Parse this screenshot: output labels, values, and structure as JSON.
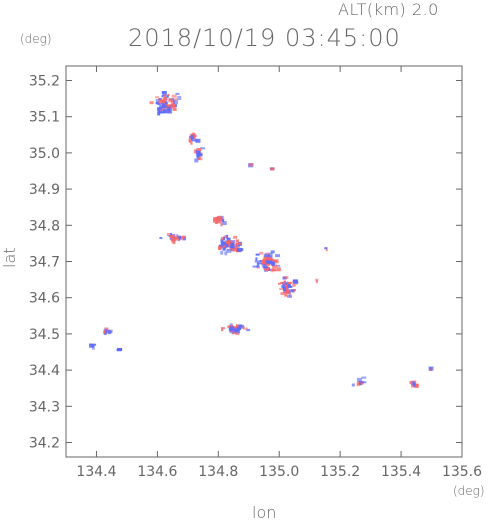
{
  "header": {
    "altitude_label": "ALT(km)  2.0",
    "timestamp": "2018/10/19 03:45:00"
  },
  "chart_data": {
    "type": "scatter",
    "xlabel": "lon",
    "ylabel": "lat",
    "xunit": "(deg)",
    "yunit": "(deg)",
    "xlim": [
      134.3,
      135.6
    ],
    "ylim": [
      34.16,
      35.24
    ],
    "xticks": [
      134.4,
      134.6,
      134.8,
      135.0,
      135.2,
      135.4,
      135.6
    ],
    "xtick_labels": [
      "134.4",
      "134.6",
      "134.8",
      "135.0",
      "135.2",
      "135.4",
      "135.6"
    ],
    "yticks": [
      34.2,
      34.3,
      34.4,
      34.5,
      34.6,
      34.7,
      34.8,
      34.9,
      35.0,
      35.1,
      35.2
    ],
    "ytick_labels": [
      "34.2",
      "34.3",
      "34.4",
      "34.5",
      "34.6",
      "34.7",
      "34.8",
      "34.9",
      "35.0",
      "35.1",
      "35.2"
    ],
    "colors": {
      "positive": "#ff6666",
      "negative": "#5a6cff",
      "axis": "#666666"
    },
    "clusters": [
      {
        "lon": 134.62,
        "lat": 35.14,
        "sx": 0.06,
        "sy": 0.04,
        "n": 70
      },
      {
        "lon": 134.71,
        "lat": 35.05,
        "sx": 0.02,
        "sy": 0.02,
        "n": 18
      },
      {
        "lon": 134.73,
        "lat": 35.0,
        "sx": 0.015,
        "sy": 0.025,
        "n": 18
      },
      {
        "lon": 134.9,
        "lat": 34.97,
        "sx": 0.005,
        "sy": 0.005,
        "n": 3
      },
      {
        "lon": 134.97,
        "lat": 34.96,
        "sx": 0.003,
        "sy": 0.003,
        "n": 2
      },
      {
        "lon": 134.8,
        "lat": 34.82,
        "sx": 0.02,
        "sy": 0.015,
        "n": 18
      },
      {
        "lon": 134.65,
        "lat": 34.77,
        "sx": 0.05,
        "sy": 0.015,
        "n": 25
      },
      {
        "lon": 134.83,
        "lat": 34.75,
        "sx": 0.05,
        "sy": 0.03,
        "n": 80
      },
      {
        "lon": 134.95,
        "lat": 34.7,
        "sx": 0.05,
        "sy": 0.04,
        "n": 70
      },
      {
        "lon": 135.02,
        "lat": 34.63,
        "sx": 0.04,
        "sy": 0.04,
        "n": 50
      },
      {
        "lon": 134.85,
        "lat": 34.52,
        "sx": 0.05,
        "sy": 0.02,
        "n": 40
      },
      {
        "lon": 134.43,
        "lat": 34.51,
        "sx": 0.015,
        "sy": 0.01,
        "n": 8
      },
      {
        "lon": 134.38,
        "lat": 34.47,
        "sx": 0.01,
        "sy": 0.01,
        "n": 5
      },
      {
        "lon": 134.47,
        "lat": 34.46,
        "sx": 0.008,
        "sy": 0.008,
        "n": 4
      },
      {
        "lon": 135.26,
        "lat": 34.37,
        "sx": 0.03,
        "sy": 0.02,
        "n": 12
      },
      {
        "lon": 135.44,
        "lat": 34.37,
        "sx": 0.02,
        "sy": 0.015,
        "n": 10
      },
      {
        "lon": 135.49,
        "lat": 34.41,
        "sx": 0.005,
        "sy": 0.005,
        "n": 3
      },
      {
        "lon": 135.15,
        "lat": 34.74,
        "sx": 0.005,
        "sy": 0.005,
        "n": 2
      },
      {
        "lon": 135.12,
        "lat": 34.65,
        "sx": 0.005,
        "sy": 0.005,
        "n": 2
      }
    ]
  }
}
